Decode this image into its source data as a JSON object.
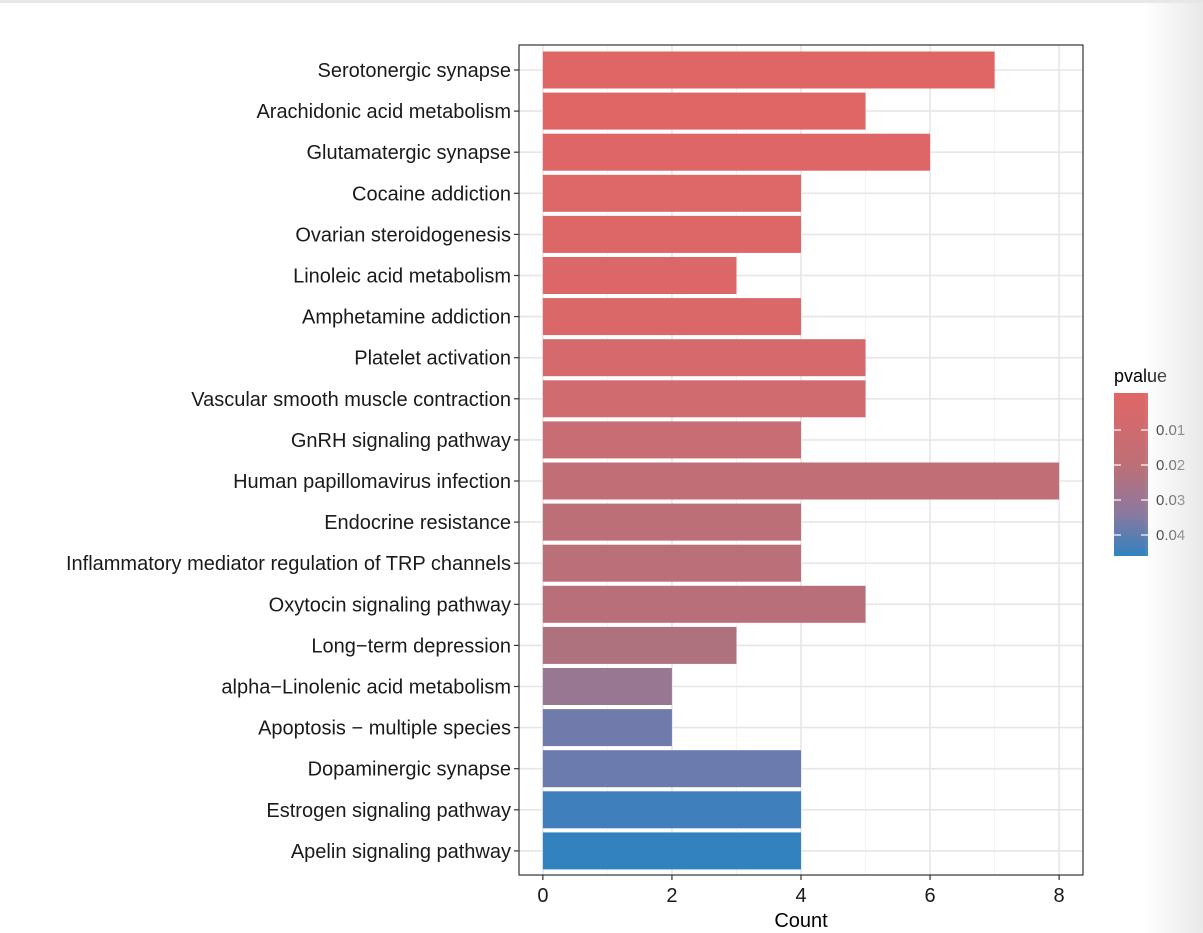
{
  "chart_data": {
    "type": "bar",
    "orientation": "horizontal",
    "xlabel": "Count",
    "xlim": [
      -0.37,
      8.37
    ],
    "xticks": [
      0,
      2,
      4,
      6,
      8
    ],
    "grid": true,
    "legend_position": "right",
    "categories": [
      "Serotonergic synapse",
      "Arachidonic acid metabolism",
      "Glutamatergic synapse",
      "Cocaine addiction",
      "Ovarian steroidogenesis",
      "Linoleic acid metabolism",
      "Amphetamine addiction",
      "Platelet activation",
      "Vascular smooth muscle contraction",
      "GnRH signaling pathway",
      "Human papillomavirus infection",
      "Endocrine resistance",
      "Inflammatory mediator regulation of TRP channels",
      "Oxytocin signaling pathway",
      "Long−term depression",
      "alpha−Linolenic acid metabolism",
      "Apoptosis − multiple species",
      "Dopaminergic synapse",
      "Estrogen signaling pathway",
      "Apelin signaling pathway"
    ],
    "values": [
      7,
      5,
      6,
      4,
      4,
      3,
      4,
      5,
      5,
      4,
      8,
      4,
      4,
      5,
      3,
      2,
      2,
      4,
      4,
      4
    ],
    "pvalues": [
      0.0008,
      0.0012,
      0.0015,
      0.002,
      0.0025,
      0.003,
      0.0045,
      0.006,
      0.0075,
      0.012,
      0.016,
      0.017,
      0.018,
      0.019,
      0.022,
      0.033,
      0.04,
      0.04,
      0.048,
      0.05
    ],
    "colors": [
      "#E06565",
      "#E06666",
      "#DF6666",
      "#DE6767",
      "#DD6667",
      "#DC6768",
      "#DA6869",
      "#D5696C",
      "#D06B6F",
      "#C76D73",
      "#C06F76",
      "#BD6F77",
      "#BB6F78",
      "#B86F7A",
      "#AE727F",
      "#977792",
      "#707BAB",
      "#6C7BAE",
      "#3F80BC",
      "#3282BF"
    ],
    "legend": {
      "title": "pvalue",
      "ticks": [
        "0.01",
        "0.02",
        "0.03",
        "0.04"
      ],
      "color_low": "#E06666",
      "color_high": "#3182BF"
    }
  }
}
